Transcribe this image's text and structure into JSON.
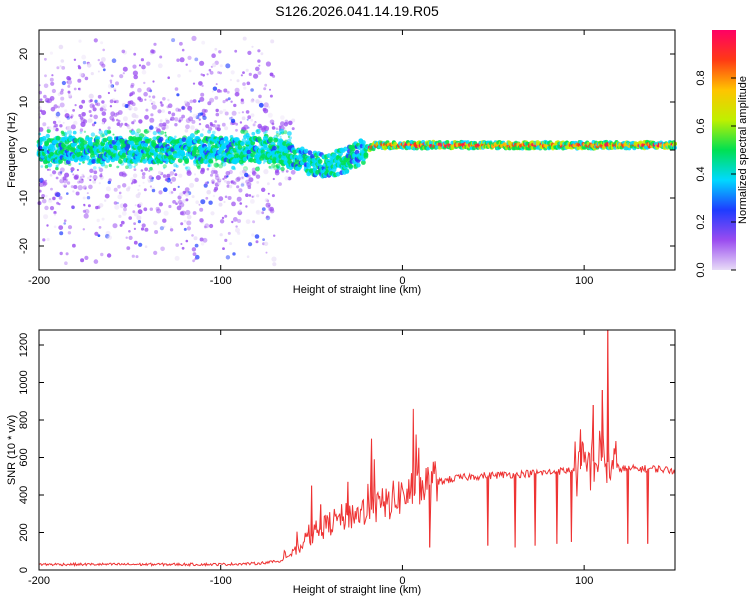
{
  "title": "S126.2026.041.14.19.R05",
  "chart_data": [
    {
      "type": "heatmap",
      "title": "S126.2026.041.14.19.R05",
      "xlabel": "Height of straight line (km)",
      "ylabel": "Frequency (Hz)",
      "xlim": [
        -200,
        150
      ],
      "ylim": [
        -25,
        25
      ],
      "xticks": [
        -200,
        -100,
        0,
        100
      ],
      "yticks": [
        20,
        10,
        0,
        -10,
        -20
      ],
      "colorbar": {
        "label": "Normalized spectral amplitude",
        "ticks": [
          "0.0",
          "0.2",
          "0.4",
          "0.6",
          "0.8"
        ],
        "range": [
          0,
          1
        ],
        "colormap": [
          "#e8dcf7",
          "#9a4cf0",
          "#1e3cff",
          "#00d9ff",
          "#00e052",
          "#bff000",
          "#ffc400",
          "#ff3a14",
          "#ff0064"
        ]
      },
      "signal_center_hz": [
        {
          "x": -200,
          "y": 0
        },
        {
          "x": -100,
          "y": 0
        },
        {
          "x": -70,
          "y": 0
        },
        {
          "x": -60,
          "y": -1.5
        },
        {
          "x": -50,
          "y": -3
        },
        {
          "x": -40,
          "y": -3
        },
        {
          "x": -30,
          "y": -2
        },
        {
          "x": -20,
          "y": 0
        },
        {
          "x": -15,
          "y": 1
        },
        {
          "x": 0,
          "y": 1
        },
        {
          "x": 50,
          "y": 1
        },
        {
          "x": 100,
          "y": 1
        },
        {
          "x": 150,
          "y": 1
        }
      ],
      "grid": false
    },
    {
      "type": "line",
      "xlabel": "Height of straight line (km)",
      "ylabel": "SNR (10 * v/v)",
      "xlim": [
        -200,
        150
      ],
      "ylim": [
        0,
        1280
      ],
      "xticks": [
        -200,
        -100,
        0,
        100
      ],
      "yticks": [
        0,
        200,
        400,
        600,
        800,
        1000,
        1200
      ],
      "series": [
        {
          "name": "SNR",
          "color": "#ee3333",
          "x": [
            -200,
            -150,
            -100,
            -80,
            -70,
            -60,
            -50,
            -40,
            -30,
            -20,
            -10,
            0,
            10,
            20,
            30,
            40,
            50,
            60,
            70,
            80,
            90,
            100,
            105,
            110,
            115,
            120,
            130,
            140,
            150
          ],
          "y": [
            30,
            30,
            30,
            35,
            45,
            90,
            180,
            250,
            290,
            310,
            350,
            400,
            440,
            470,
            490,
            500,
            505,
            510,
            515,
            520,
            530,
            540,
            580,
            600,
            560,
            540,
            540,
            540,
            530
          ]
        }
      ],
      "spikes": [
        {
          "x": -50,
          "y": 450
        },
        {
          "x": -45,
          "y": 350
        },
        {
          "x": -30,
          "y": 470
        },
        {
          "x": -17,
          "y": 700
        },
        {
          "x": 98,
          "y": 750
        },
        {
          "x": 105,
          "y": 880
        },
        {
          "x": 110,
          "y": 960
        },
        {
          "x": 113,
          "y": 1280
        }
      ],
      "dips": [
        {
          "x": 15,
          "y": 120
        },
        {
          "x": 47,
          "y": 130
        },
        {
          "x": 62,
          "y": 120
        },
        {
          "x": 73,
          "y": 130
        },
        {
          "x": 85,
          "y": 140
        },
        {
          "x": 93,
          "y": 150
        },
        {
          "x": 124,
          "y": 140
        },
        {
          "x": 135,
          "y": 140
        }
      ],
      "grid": false
    }
  ]
}
